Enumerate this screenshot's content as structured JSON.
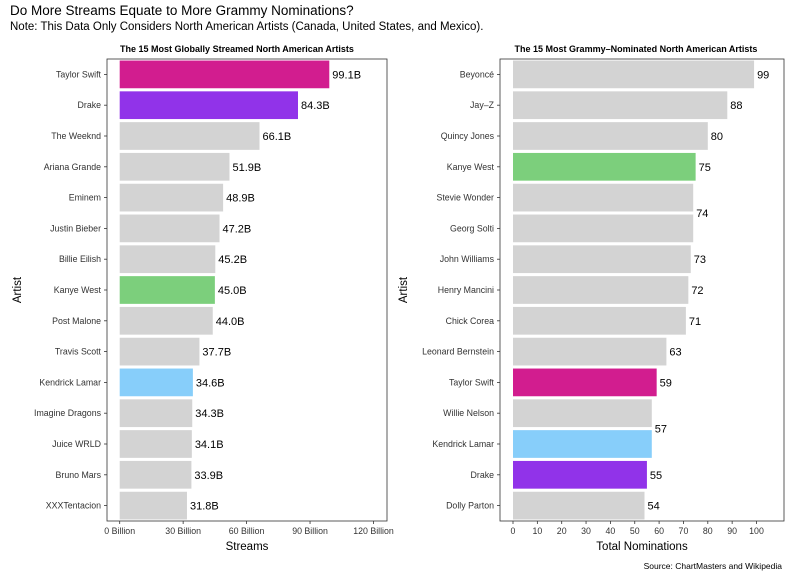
{
  "title": "Do More Streams Equate to More Grammy Nominations?",
  "subtitle": "Note: This Data Only Considers North American Artists (Canada, United States, and Mexico).",
  "caption": "Source: ChartMasters and Wikipedia",
  "colors": {
    "default": "#d3d3d3",
    "taylor_swift": "#d21d8f",
    "drake": "#9133e9",
    "kanye_west": "#7ccf7c",
    "kendrick_lamar": "#87cefa"
  },
  "chart_data": [
    {
      "type": "bar",
      "orientation": "horizontal",
      "title": "The 15 Most Globally Streamed North American Artists",
      "xlabel": "Streams",
      "ylabel": "Artist",
      "xlim": [
        0,
        120
      ],
      "xticks": [
        0,
        30,
        60,
        90,
        120
      ],
      "xtick_labels": [
        "0 Billion",
        "30 Billion",
        "60 Billion",
        "90 Billion",
        "120 Billion"
      ],
      "categories": [
        "Taylor Swift",
        "Drake",
        "The Weeknd",
        "Ariana Grande",
        "Eminem",
        "Justin Bieber",
        "Billie Eilish",
        "Kanye West",
        "Post Malone",
        "Travis Scott",
        "Kendrick Lamar",
        "Imagine Dragons",
        "Juice WRLD",
        "Bruno Mars",
        "XXXTentacion"
      ],
      "values": [
        99.1,
        84.3,
        66.1,
        51.9,
        48.9,
        47.2,
        45.2,
        45.0,
        44.0,
        37.7,
        34.6,
        34.3,
        34.1,
        33.9,
        31.8
      ],
      "value_labels": [
        "99.1B",
        "84.3B",
        "66.1B",
        "51.9B",
        "48.9B",
        "47.2B",
        "45.2B",
        "45.0B",
        "44.0B",
        "37.7B",
        "34.6B",
        "34.3B",
        "34.1B",
        "33.9B",
        "31.8B"
      ]
    },
    {
      "type": "bar",
      "orientation": "horizontal",
      "title": "The 15 Most Grammy–Nominated North American Artists",
      "xlabel": "Total Nominations",
      "ylabel": "Artist",
      "xlim": [
        0,
        100
      ],
      "xticks": [
        0,
        10,
        20,
        30,
        40,
        50,
        60,
        70,
        80,
        90,
        100
      ],
      "xtick_labels": [
        "0",
        "10",
        "20",
        "30",
        "40",
        "50",
        "60",
        "70",
        "80",
        "90",
        "100"
      ],
      "categories": [
        "Beyoncé",
        "Jay–Z",
        "Quincy Jones",
        "Kanye West",
        "Stevie Wonder",
        "Georg Solti",
        "John Williams",
        "Henry Mancini",
        "Chick Corea",
        "Leonard Bernstein",
        "Taylor Swift",
        "Willie Nelson",
        "Kendrick Lamar",
        "Drake",
        "Dolly Parton"
      ],
      "values": [
        99,
        88,
        80,
        75,
        74,
        74,
        73,
        72,
        71,
        63,
        59,
        57,
        57,
        55,
        54
      ],
      "value_labels": [
        "99",
        "88",
        "80",
        "75",
        "74",
        "",
        "73",
        "72",
        "71",
        "63",
        "59",
        "57",
        "",
        "55",
        "54"
      ]
    }
  ]
}
